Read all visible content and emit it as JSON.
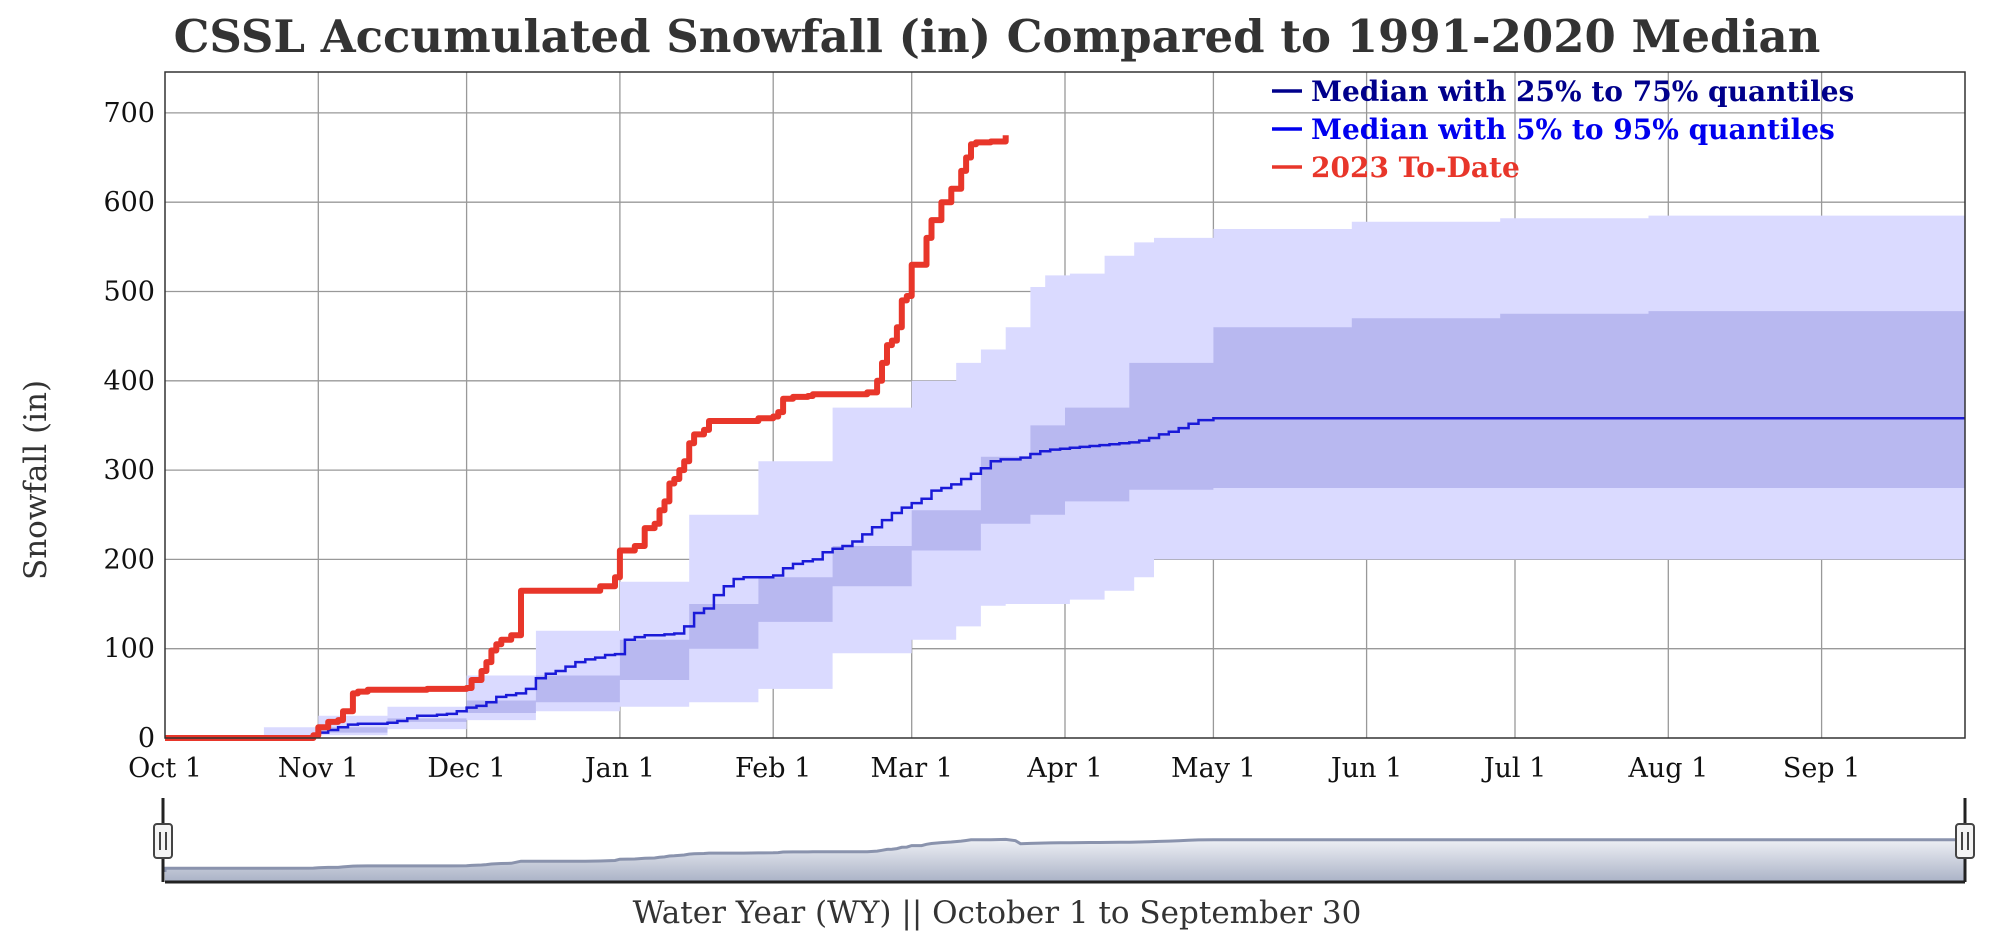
{
  "chart_data": {
    "type": "area",
    "title": "CSSL Accumulated Snowfall (in) Compared to 1991-2020 Median",
    "xlabel": "Water Year (WY) || October 1 to September 30",
    "ylabel": "Snowfall (in)",
    "ylim": [
      0,
      740
    ],
    "yticks": [
      "0",
      "100",
      "200",
      "300",
      "400",
      "500",
      "600",
      "700"
    ],
    "xticks": [
      "Oct 1",
      "Nov 1",
      "Dec 1",
      "Jan 1",
      "Feb 1",
      "Mar 1",
      "Apr 1",
      "May 1",
      "Jun 1",
      "Jul 1",
      "Aug 1",
      "Sep 1"
    ],
    "xtick_days": [
      0,
      31,
      61,
      92,
      123,
      151,
      182,
      212,
      243,
      273,
      304,
      335
    ],
    "xlim": [
      0,
      364
    ],
    "grid": true,
    "legend_position": "top-right",
    "legend": [
      {
        "label": "Median with 25% to 75% quantiles",
        "color": "#00008b"
      },
      {
        "label": "Median with 5% to 95% quantiles",
        "color": "#0000ee"
      },
      {
        "label": "2023 To-Date",
        "color": "#e8362a"
      }
    ],
    "colors": {
      "band_5_95": "#dadaff",
      "band_25_75": "#b8b8f0",
      "median": "#1a1ad8",
      "current": "#e8362a",
      "grid": "#999999",
      "navigator_fill": "#c9cfdc",
      "navigator_line": "#8a93ad"
    },
    "series": [
      {
        "name": "2023 To-Date",
        "x": [
          0,
          20,
          30,
          31,
          33,
          35,
          36,
          38,
          39,
          41,
          42,
          44,
          46,
          50,
          53,
          56,
          58,
          61,
          62,
          64,
          65,
          66,
          67,
          68,
          70,
          72,
          75,
          80,
          85,
          88,
          91,
          92,
          95,
          97,
          99,
          100,
          101,
          102,
          103,
          104,
          105,
          106,
          107,
          109,
          110,
          112,
          114,
          117,
          120,
          121,
          123,
          124,
          125,
          127,
          130,
          131,
          134,
          137,
          142,
          144,
          145,
          146,
          147,
          148,
          149,
          150,
          151,
          152,
          153,
          154,
          155,
          157,
          159,
          161,
          162,
          163,
          164,
          166,
          167,
          170
        ],
        "values": [
          0,
          0,
          3,
          12,
          18,
          20,
          30,
          50,
          52,
          54,
          54,
          54,
          54,
          54,
          55,
          55,
          55,
          56,
          65,
          75,
          85,
          98,
          105,
          110,
          115,
          165,
          165,
          165,
          165,
          170,
          180,
          210,
          215,
          235,
          240,
          255,
          265,
          285,
          290,
          300,
          310,
          330,
          340,
          345,
          355,
          355,
          355,
          355,
          358,
          358,
          360,
          365,
          380,
          382,
          383,
          385,
          385,
          385,
          387,
          400,
          420,
          440,
          445,
          460,
          490,
          495,
          530,
          530,
          530,
          560,
          580,
          600,
          615,
          635,
          650,
          665,
          667,
          667,
          668,
          675
        ]
      },
      {
        "name": "Median",
        "x": [
          0,
          20,
          29,
          31,
          33,
          35,
          37,
          39,
          41,
          43,
          45,
          47,
          49,
          51,
          53,
          55,
          57,
          59,
          61,
          63,
          65,
          67,
          69,
          71,
          73,
          75,
          77,
          79,
          81,
          83,
          85,
          87,
          89,
          91,
          93,
          95,
          97,
          99,
          101,
          103,
          105,
          107,
          109,
          111,
          113,
          115,
          117,
          119,
          121,
          123,
          125,
          127,
          129,
          131,
          133,
          135,
          137,
          139,
          141,
          143,
          145,
          147,
          149,
          151,
          153,
          155,
          157,
          159,
          161,
          163,
          165,
          167,
          169,
          171,
          173,
          175,
          177,
          179,
          181,
          183,
          185,
          187,
          189,
          191,
          193,
          195,
          197,
          199,
          201,
          203,
          205,
          207,
          209,
          212,
          240,
          270,
          300,
          330,
          364
        ],
        "values": [
          0,
          0,
          2,
          6,
          9,
          12,
          15,
          16,
          16,
          16,
          17,
          19,
          22,
          25,
          25,
          26,
          27,
          30,
          34,
          36,
          40,
          46,
          48,
          50,
          55,
          67,
          72,
          75,
          80,
          85,
          88,
          90,
          93,
          94,
          110,
          113,
          115,
          115,
          116,
          117,
          125,
          140,
          145,
          160,
          170,
          178,
          180,
          180,
          180,
          182,
          190,
          195,
          198,
          200,
          208,
          212,
          215,
          220,
          228,
          236,
          244,
          252,
          258,
          263,
          268,
          277,
          280,
          284,
          290,
          296,
          302,
          310,
          312,
          312,
          314,
          318,
          321,
          323,
          324,
          325,
          326,
          327,
          328,
          329,
          330,
          331,
          333,
          336,
          340,
          343,
          347,
          352,
          356,
          358,
          358,
          358,
          358,
          358,
          358
        ]
      },
      {
        "name": "25% to 75% quantiles",
        "x": [
          0,
          20,
          31,
          45,
          61,
          75,
          92,
          106,
          120,
          135,
          151,
          165,
          175,
          182,
          195,
          212,
          240,
          270,
          300,
          330,
          364
        ],
        "lower": [
          0,
          0,
          2,
          6,
          18,
          28,
          40,
          65,
          100,
          130,
          170,
          210,
          240,
          250,
          265,
          278,
          280,
          280,
          280,
          280,
          280
        ],
        "upper": [
          0,
          3,
          12,
          22,
          42,
          70,
          110,
          150,
          180,
          215,
          255,
          315,
          350,
          370,
          420,
          460,
          470,
          475,
          478,
          478,
          478
        ]
      },
      {
        "name": "5% to 95% quantiles",
        "x": [
          0,
          12,
          20,
          31,
          45,
          61,
          75,
          92,
          106,
          120,
          135,
          151,
          160,
          165,
          170,
          175,
          178,
          183,
          190,
          196,
          200,
          212,
          240,
          270,
          300,
          330,
          364
        ],
        "lower": [
          0,
          0,
          0,
          1,
          3,
          10,
          20,
          30,
          35,
          40,
          55,
          95,
          110,
          125,
          148,
          150,
          150,
          150,
          155,
          165,
          180,
          200,
          200,
          200,
          200,
          200,
          200
        ],
        "upper": [
          0,
          3,
          12,
          25,
          35,
          70,
          120,
          175,
          250,
          310,
          370,
          400,
          420,
          435,
          460,
          505,
          518,
          520,
          540,
          555,
          560,
          570,
          578,
          582,
          585,
          585,
          585
        ]
      }
    ]
  }
}
